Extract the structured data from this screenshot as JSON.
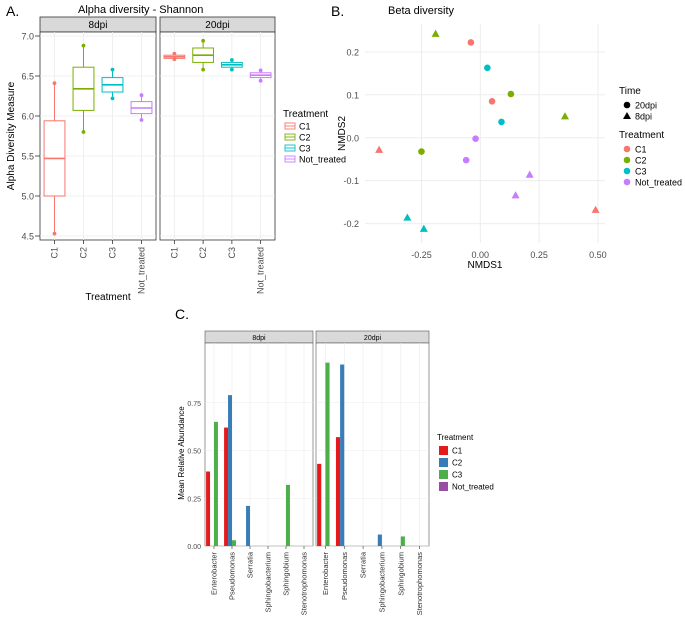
{
  "panel_labels": {
    "a": "A.",
    "b": "B.",
    "c": "C."
  },
  "colors": {
    "C1": "#F8766D",
    "C2": "#7CAE00",
    "C3": "#00BFC4",
    "Not_treated": "#C77CFF",
    "barC1": "#E41A1C",
    "barC2": "#377EB8",
    "barC3": "#4DAF4A",
    "barNot": "#984EA3",
    "strip": "#D9D9D9",
    "grid": "#EBEBEB"
  },
  "chart_data": [
    {
      "id": "alpha",
      "type": "box",
      "title": "Alpha diversity - Shannon",
      "xlabel": "Treatment",
      "ylabel": "Alpha Diversity Measure",
      "ylim": [
        4.45,
        7.05
      ],
      "yticks": [
        "4.5",
        "5.0",
        "5.5",
        "6.0",
        "6.5",
        "7.0"
      ],
      "categories": [
        "C1",
        "C2",
        "C3",
        "Not_treated"
      ],
      "facets": [
        {
          "label": "8dpi",
          "boxes": [
            {
              "group": "C1",
              "min": 4.53,
              "q1": 5.0,
              "median": 5.47,
              "q3": 5.94,
              "max": 6.41
            },
            {
              "group": "C2",
              "min": 5.8,
              "q1": 6.07,
              "median": 6.34,
              "q3": 6.61,
              "max": 6.88
            },
            {
              "group": "C3",
              "min": 6.22,
              "q1": 6.3,
              "median": 6.39,
              "q3": 6.48,
              "max": 6.58
            },
            {
              "group": "Not_treated",
              "min": 5.95,
              "q1": 6.03,
              "median": 6.1,
              "q3": 6.18,
              "max": 6.26
            }
          ]
        },
        {
          "label": "20dpi",
          "boxes": [
            {
              "group": "C1",
              "min": 6.71,
              "q1": 6.72,
              "median": 6.74,
              "q3": 6.76,
              "max": 6.78
            },
            {
              "group": "C2",
              "min": 6.58,
              "q1": 6.67,
              "median": 6.76,
              "q3": 6.85,
              "max": 6.94
            },
            {
              "group": "C3",
              "min": 6.58,
              "q1": 6.61,
              "median": 6.64,
              "q3": 6.67,
              "max": 6.7
            },
            {
              "group": "Not_treated",
              "min": 6.44,
              "q1": 6.48,
              "median": 6.51,
              "q3": 6.54,
              "max": 6.57
            }
          ]
        }
      ],
      "legend": {
        "title": "Treatment",
        "entries": [
          "C1",
          "C2",
          "C3",
          "Not_treated"
        ]
      }
    },
    {
      "id": "beta",
      "type": "scatter",
      "title": "Beta diversity",
      "xlabel": "NMDS1",
      "ylabel": "NMDS2",
      "xlim": [
        -0.49,
        0.53
      ],
      "ylim": [
        -0.245,
        0.265
      ],
      "xticks": [
        "-0.25",
        "0.00",
        "0.25",
        "0.50"
      ],
      "yticks": [
        "0.2",
        "0.1",
        "0.0",
        "-0.1",
        "-0.2"
      ],
      "points": [
        {
          "x": -0.43,
          "y": -0.028,
          "group": "C1",
          "time": "8dpi"
        },
        {
          "x": 0.49,
          "y": -0.168,
          "group": "C1",
          "time": "8dpi"
        },
        {
          "x": -0.04,
          "y": 0.222,
          "group": "C1",
          "time": "20dpi"
        },
        {
          "x": 0.05,
          "y": 0.085,
          "group": "C1",
          "time": "20dpi"
        },
        {
          "x": -0.19,
          "y": 0.242,
          "group": "C2",
          "time": "8dpi"
        },
        {
          "x": 0.36,
          "y": 0.05,
          "group": "C2",
          "time": "8dpi"
        },
        {
          "x": -0.25,
          "y": -0.032,
          "group": "C2",
          "time": "20dpi"
        },
        {
          "x": 0.13,
          "y": 0.102,
          "group": "C2",
          "time": "20dpi"
        },
        {
          "x": -0.31,
          "y": -0.186,
          "group": "C3",
          "time": "8dpi"
        },
        {
          "x": -0.24,
          "y": -0.212,
          "group": "C3",
          "time": "8dpi"
        },
        {
          "x": 0.03,
          "y": 0.163,
          "group": "C3",
          "time": "20dpi"
        },
        {
          "x": 0.09,
          "y": 0.037,
          "group": "C3",
          "time": "20dpi"
        },
        {
          "x": 0.21,
          "y": -0.086,
          "group": "Not_treated",
          "time": "8dpi"
        },
        {
          "x": 0.15,
          "y": -0.134,
          "group": "Not_treated",
          "time": "8dpi"
        },
        {
          "x": -0.06,
          "y": -0.052,
          "group": "Not_treated",
          "time": "20dpi"
        },
        {
          "x": -0.02,
          "y": -0.002,
          "group": "Not_treated",
          "time": "20dpi"
        }
      ],
      "legend_time": {
        "title": "Time",
        "entries": [
          "20dpi",
          "8dpi"
        ]
      },
      "legend_treatment": {
        "title": "Treatment",
        "entries": [
          "C1",
          "C2",
          "C3",
          "Not_treated"
        ]
      }
    },
    {
      "id": "abundance",
      "type": "bar",
      "ylabel": "Mean Relative Abundance",
      "ylim": [
        0,
        1.0
      ],
      "yticks": [
        "0.00",
        "0.25",
        "0.50",
        "0.75"
      ],
      "categories": [
        "Enterobacter",
        "Pseudomonas",
        "Serratia",
        "Sphingobacterium",
        "Sphingobium",
        "Stenotrophomonas"
      ],
      "series_names": [
        "C1",
        "C2",
        "C3",
        "Not_treated"
      ],
      "facets": [
        {
          "label": "8dpi",
          "series": [
            {
              "name": "C1",
              "values": [
                0.39,
                0.62,
                0,
                0,
                0,
                0
              ]
            },
            {
              "name": "C2",
              "values": [
                0,
                0.79,
                0.21,
                0,
                0,
                0
              ]
            },
            {
              "name": "C3",
              "values": [
                0.65,
                0.03,
                0,
                0,
                0.32,
                0
              ]
            },
            {
              "name": "Not_treated",
              "values": [
                0,
                0,
                0,
                0,
                0,
                0
              ]
            }
          ]
        },
        {
          "label": "20dpi",
          "series": [
            {
              "name": "C1",
              "values": [
                0.43,
                0.57,
                0,
                0,
                0,
                0
              ]
            },
            {
              "name": "C2",
              "values": [
                0,
                0.95,
                0,
                0.06,
                0,
                0
              ]
            },
            {
              "name": "C3",
              "values": [
                0.96,
                0,
                0,
                0,
                0.05,
                0
              ]
            },
            {
              "name": "Not_treated",
              "values": [
                0,
                0,
                0,
                0,
                0,
                0
              ]
            }
          ]
        }
      ],
      "legend": {
        "title": "Treatment",
        "entries": [
          "C1",
          "C2",
          "C3",
          "Not_treated"
        ]
      }
    }
  ]
}
